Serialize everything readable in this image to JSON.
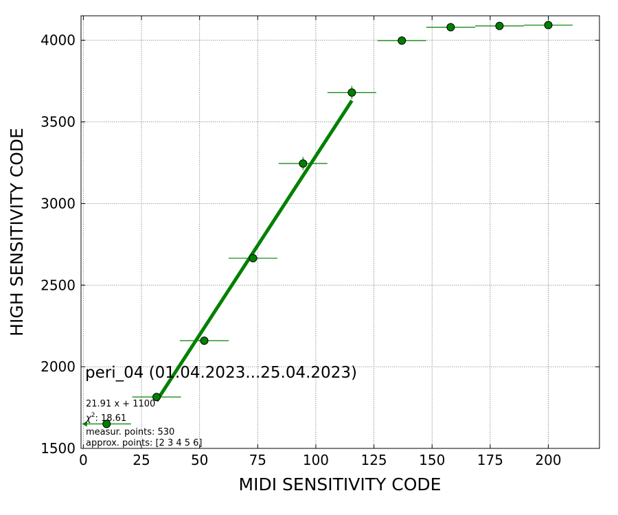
{
  "chart_data": {
    "type": "scatter",
    "xlabel": "MIDI SENSITIVITY CODE",
    "ylabel": "HIGH SENSITIVITY CODE",
    "xlim": [
      -1,
      222
    ],
    "ylim": [
      1500,
      4150
    ],
    "xticks": [
      0,
      25,
      50,
      75,
      100,
      125,
      150,
      175,
      200
    ],
    "yticks": [
      1500,
      2000,
      2500,
      3000,
      3500,
      4000
    ],
    "grid": true,
    "marker_color": "#008000",
    "series": [
      {
        "type": "scatter_with_errorbars",
        "points": [
          {
            "x": 10,
            "y": 1650,
            "xerr": 10.5,
            "yerr": 0
          },
          {
            "x": 31.5,
            "y": 1815,
            "xerr": 10.5,
            "yerr": 15
          },
          {
            "x": 52,
            "y": 2160,
            "xerr": 10.5,
            "yerr": 15
          },
          {
            "x": 73,
            "y": 2665,
            "xerr": 10.5,
            "yerr": 25
          },
          {
            "x": 94.5,
            "y": 3245,
            "xerr": 10.5,
            "yerr": 40
          },
          {
            "x": 115.5,
            "y": 3680,
            "xerr": 10.5,
            "yerr": 40
          },
          {
            "x": 137,
            "y": 3998,
            "xerr": 10.5,
            "yerr": 0
          },
          {
            "x": 158,
            "y": 4080,
            "xerr": 10.5,
            "yerr": 0
          },
          {
            "x": 179,
            "y": 4088,
            "xerr": 10.5,
            "yerr": 0
          },
          {
            "x": 200,
            "y": 4093,
            "xerr": 10.5,
            "yerr": 0
          }
        ]
      },
      {
        "type": "fit_line",
        "slope": 21.91,
        "intercept": 1100,
        "x_range": [
          31.5,
          115.5
        ]
      }
    ],
    "annotations": {
      "title": "peri_04 (01.04.2023...25.04.2023)",
      "fit": "21.91 x + 1100",
      "chi2_label": "χ",
      "chi2_sup": "2",
      "chi2_value": ": 18.61",
      "measur": "measur. points: 530",
      "approx": "approx. points: [2 3 4 5 6]"
    }
  }
}
